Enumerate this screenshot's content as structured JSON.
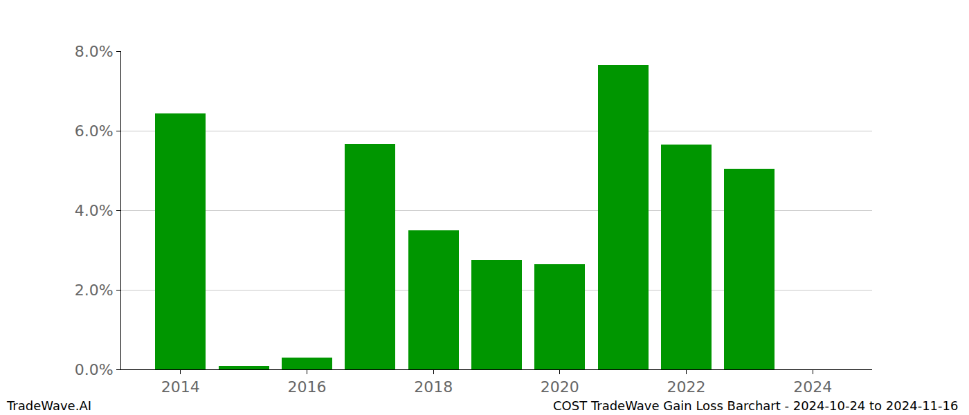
{
  "chart_data": {
    "type": "bar",
    "title": "COST TradeWave Gain Loss Barchart - 2024-10-24 to 2024-11-16",
    "annotations": [
      "TradeWave.AI"
    ],
    "x": [
      2014,
      2015,
      2016,
      2017,
      2018,
      2019,
      2020,
      2021,
      2022,
      2023,
      2024
    ],
    "values": [
      6.43,
      0.08,
      0.3,
      5.67,
      3.5,
      2.75,
      2.65,
      7.65,
      5.65,
      5.05,
      null
    ],
    "color": "#009600",
    "xlim": [
      2013.06,
      2024.94
    ],
    "xticks": [
      2014,
      2016,
      2018,
      2020,
      2022,
      2024
    ],
    "ylim": [
      0,
      8
    ],
    "yticks": [
      {
        "value": 0,
        "label": "0.0%"
      },
      {
        "value": 2,
        "label": "2.0%"
      },
      {
        "value": 4,
        "label": "4.0%"
      },
      {
        "value": 6,
        "label": "6.0%"
      },
      {
        "value": 8,
        "label": "8.0%"
      }
    ],
    "grid": true
  }
}
